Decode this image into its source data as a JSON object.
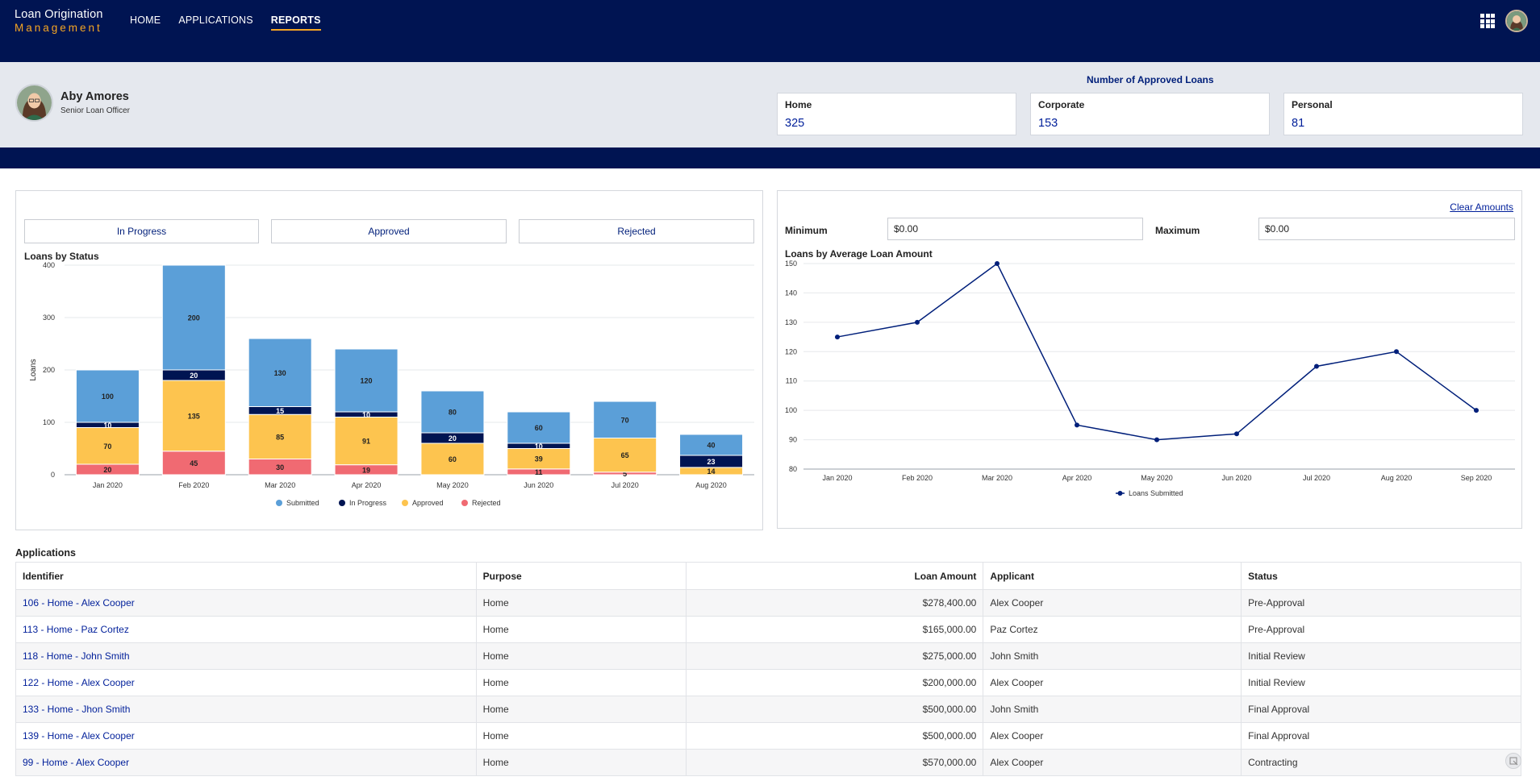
{
  "app": {
    "logo_line1": "Loan Origination",
    "logo_line2": "Management",
    "nav": [
      "HOME",
      "APPLICATIONS",
      "REPORTS"
    ],
    "active_nav": "REPORTS"
  },
  "profile": {
    "name": "Aby Amores",
    "role": "Senior Loan Officer"
  },
  "approved_loans": {
    "title": "Number of Approved Loans",
    "cards": [
      {
        "label": "Home",
        "value": "325"
      },
      {
        "label": "Corporate",
        "value": "153"
      },
      {
        "label": "Personal",
        "value": "81"
      }
    ]
  },
  "status_buttons": [
    "In Progress",
    "Approved",
    "Rejected"
  ],
  "filters": {
    "clear_label": "Clear Amounts",
    "min_label": "Minimum",
    "min_value": "$0.00",
    "max_label": "Maximum",
    "max_value": "$0.00"
  },
  "chart_data": [
    {
      "type": "bar",
      "stacked": true,
      "title": "Loans by Status",
      "xlabel": "",
      "ylabel": "Loans",
      "ylim": [
        0,
        400
      ],
      "yticks": [
        0,
        100,
        200,
        300,
        400
      ],
      "grid": true,
      "legend": "bottom",
      "categories": [
        "Jan 2020",
        "Feb 2020",
        "Mar 2020",
        "Apr 2020",
        "May 2020",
        "Jun 2020",
        "Jul 2020",
        "Aug 2020"
      ],
      "series": [
        {
          "name": "Rejected",
          "color": "#f06a72",
          "values": [
            20,
            45,
            30,
            19,
            0,
            11,
            5,
            0
          ],
          "labels": [
            "20",
            "45",
            "30",
            "19",
            "",
            "11",
            "5",
            ""
          ]
        },
        {
          "name": "Approved",
          "color": "#fdc44f",
          "values": [
            70,
            135,
            85,
            91,
            60,
            39,
            65,
            14
          ],
          "labels": [
            "70",
            "135",
            "85",
            "91",
            "60",
            "39",
            "65",
            "14"
          ]
        },
        {
          "name": "In Progress",
          "color": "#001452",
          "values": [
            10,
            20,
            15,
            10,
            20,
            10,
            0,
            23
          ],
          "labels": [
            "10",
            "20",
            "15",
            "10",
            "20",
            "10",
            "",
            "23"
          ]
        },
        {
          "name": "Submitted",
          "color": "#5b9fd8",
          "values": [
            100,
            200,
            130,
            120,
            80,
            60,
            70,
            40
          ],
          "labels": [
            "100",
            "200",
            "130",
            "120",
            "80",
            "60",
            "70",
            "40"
          ]
        }
      ],
      "legend_order": [
        "Submitted",
        "In Progress",
        "Approved",
        "Rejected"
      ]
    },
    {
      "type": "line",
      "title": "Loans by Average Loan Amount",
      "xlabel": "",
      "ylabel": "",
      "ylim": [
        80,
        150
      ],
      "yticks": [
        80,
        90,
        100,
        110,
        120,
        130,
        140,
        150
      ],
      "grid": true,
      "legend": "bottom",
      "x": [
        "Jan 2020",
        "Feb 2020",
        "Mar 2020",
        "Apr 2020",
        "May 2020",
        "Jun 2020",
        "Jul 2020",
        "Aug 2020",
        "Sep 2020"
      ],
      "series": [
        {
          "name": "Loans Submitted",
          "color": "#001f7a",
          "values": [
            125,
            130,
            150,
            95,
            90,
            92,
            115,
            120,
            100
          ]
        }
      ]
    }
  ],
  "applications": {
    "title": "Applications",
    "columns": [
      "Identifier",
      "Purpose",
      "Loan Amount",
      "Applicant",
      "Status"
    ],
    "rows": [
      {
        "id": "106 - Home - Alex Cooper",
        "purpose": "Home",
        "amount": "$278,400.00",
        "applicant": "Alex Cooper",
        "status": "Pre-Approval"
      },
      {
        "id": "113 - Home - Paz Cortez",
        "purpose": "Home",
        "amount": "$165,000.00",
        "applicant": "Paz Cortez",
        "status": "Pre-Approval"
      },
      {
        "id": "118 - Home - John Smith",
        "purpose": "Home",
        "amount": "$275,000.00",
        "applicant": "John Smith",
        "status": "Initial Review"
      },
      {
        "id": "122 - Home - Alex Cooper",
        "purpose": "Home",
        "amount": "$200,000.00",
        "applicant": "Alex  Cooper",
        "status": "Initial Review"
      },
      {
        "id": "133 - Home - Jhon Smith",
        "purpose": "Home",
        "amount": "$500,000.00",
        "applicant": "John Smith",
        "status": "Final Approval"
      },
      {
        "id": "139 - Home - Alex Cooper",
        "purpose": "Home",
        "amount": "$500,000.00",
        "applicant": "Alex Cooper",
        "status": "Final Approval"
      },
      {
        "id": "99 - Home - Alex Cooper",
        "purpose": "Home",
        "amount": "$570,000.00",
        "applicant": "Alex Cooper",
        "status": "Contracting"
      }
    ]
  }
}
